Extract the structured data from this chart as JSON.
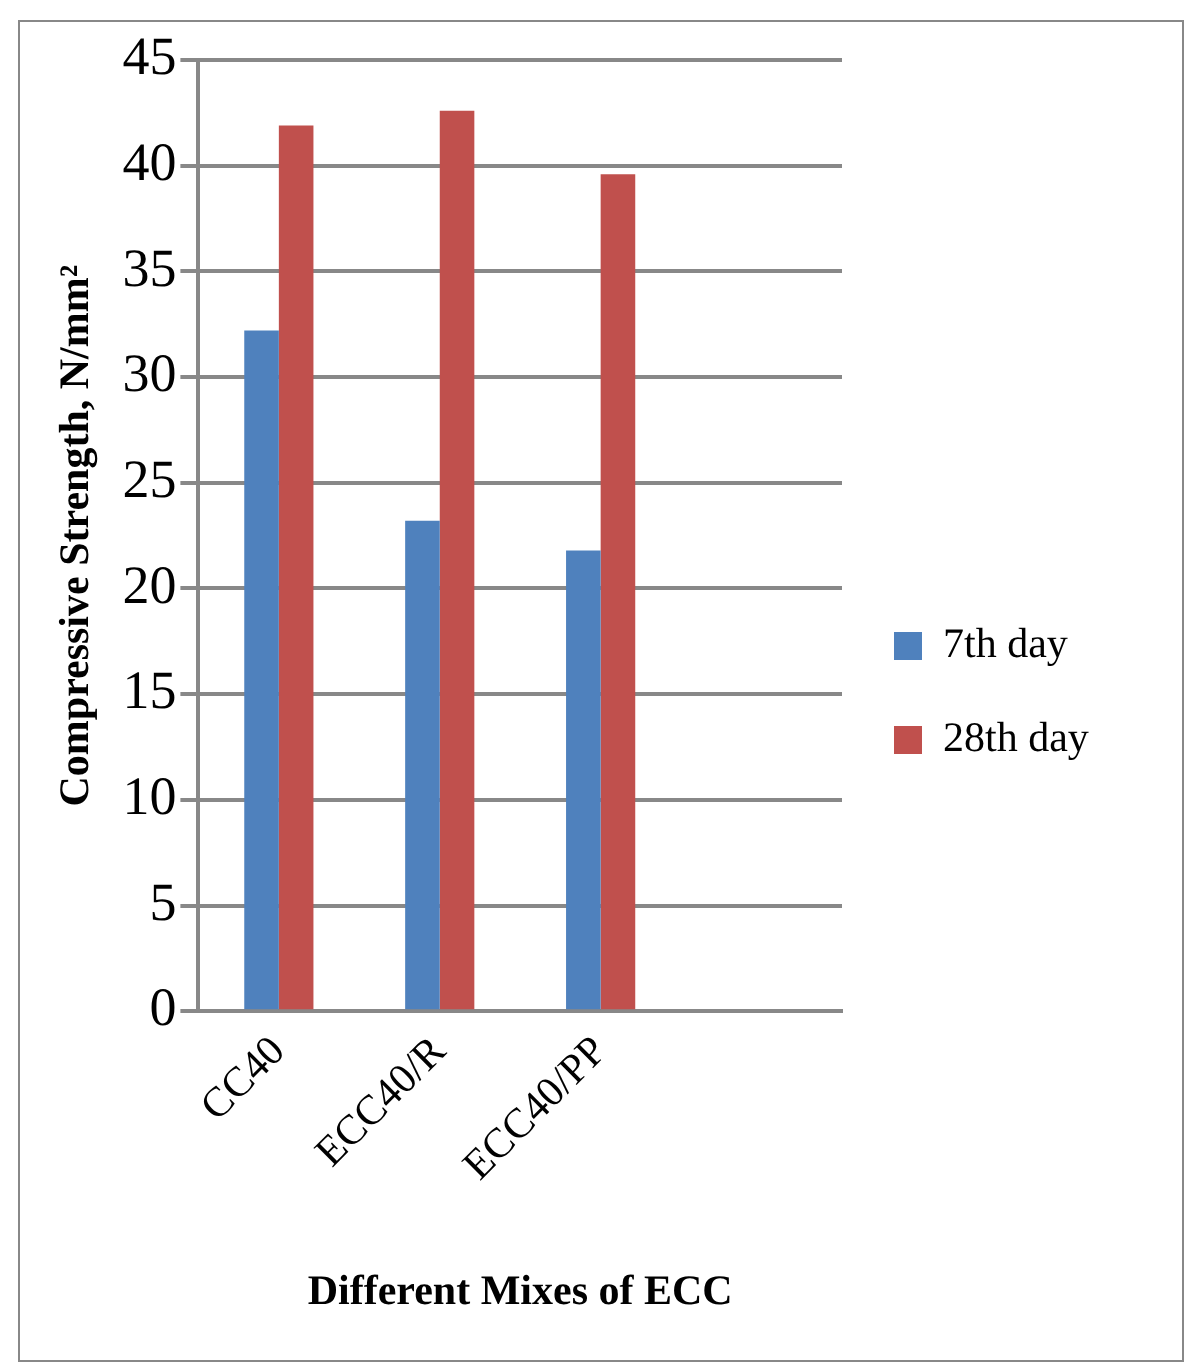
{
  "chart_data": {
    "type": "bar",
    "xlabel": "Different Mixes of ECC",
    "ylabel": "Compressive Strength, N/mm²",
    "categories": [
      "CC40",
      "ECC40/R",
      "ECC40/PP",
      null
    ],
    "series": [
      {
        "name": "7th day",
        "color": "#4f81bd",
        "values": [
          32.2,
          23.2,
          21.8,
          null
        ]
      },
      {
        "name": "28th day",
        "color": "#c0504d",
        "values": [
          41.9,
          42.6,
          39.6,
          null
        ]
      }
    ],
    "ylim": [
      0,
      45
    ],
    "yticks": [
      0,
      5,
      10,
      15,
      20,
      25,
      30,
      35,
      40,
      45
    ],
    "grid": "y",
    "legend": "right"
  }
}
